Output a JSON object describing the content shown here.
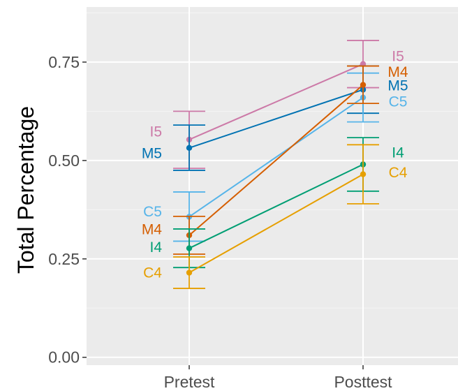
{
  "chart_data": {
    "type": "line",
    "title": "",
    "xlabel": "",
    "ylabel": "Total Percentage",
    "categories": [
      "Pretest",
      "Posttest"
    ],
    "ylim": [
      -0.02,
      0.89
    ],
    "yticks": [
      0.0,
      0.25,
      0.5,
      0.75
    ],
    "ytick_labels": [
      "0.00",
      "0.25",
      "0.50",
      "0.75"
    ],
    "grid": true,
    "legend": "none",
    "series": [
      {
        "name": "I5",
        "color": "#CC79A7",
        "values": [
          0.553,
          0.745
        ],
        "err_low": [
          0.48,
          0.685
        ],
        "err_high": [
          0.625,
          0.805
        ]
      },
      {
        "name": "M5",
        "color": "#0072B2",
        "values": [
          0.532,
          0.68
        ],
        "err_low": [
          0.475,
          0.62
        ],
        "err_high": [
          0.59,
          0.74
        ]
      },
      {
        "name": "C5",
        "color": "#56B4E9",
        "values": [
          0.357,
          0.66
        ],
        "err_low": [
          0.295,
          0.598
        ],
        "err_high": [
          0.42,
          0.722
        ]
      },
      {
        "name": "M4",
        "color": "#D55E00",
        "values": [
          0.31,
          0.692
        ],
        "err_low": [
          0.262,
          0.645
        ],
        "err_high": [
          0.358,
          0.74
        ]
      },
      {
        "name": "I4",
        "color": "#009E73",
        "values": [
          0.277,
          0.49
        ],
        "err_low": [
          0.228,
          0.422
        ],
        "err_high": [
          0.326,
          0.558
        ]
      },
      {
        "name": "C4",
        "color": "#E69F00",
        "values": [
          0.215,
          0.465
        ],
        "err_low": [
          0.175,
          0.39
        ],
        "err_high": [
          0.255,
          0.54
        ]
      }
    ],
    "label_y": {
      "I5": [
        0.573,
        0.765
      ],
      "M5": [
        0.518,
        0.69
      ],
      "C5": [
        0.37,
        0.65
      ],
      "M4": [
        0.325,
        0.725
      ],
      "I4": [
        0.28,
        0.52
      ],
      "C4": [
        0.215,
        0.47
      ]
    }
  }
}
